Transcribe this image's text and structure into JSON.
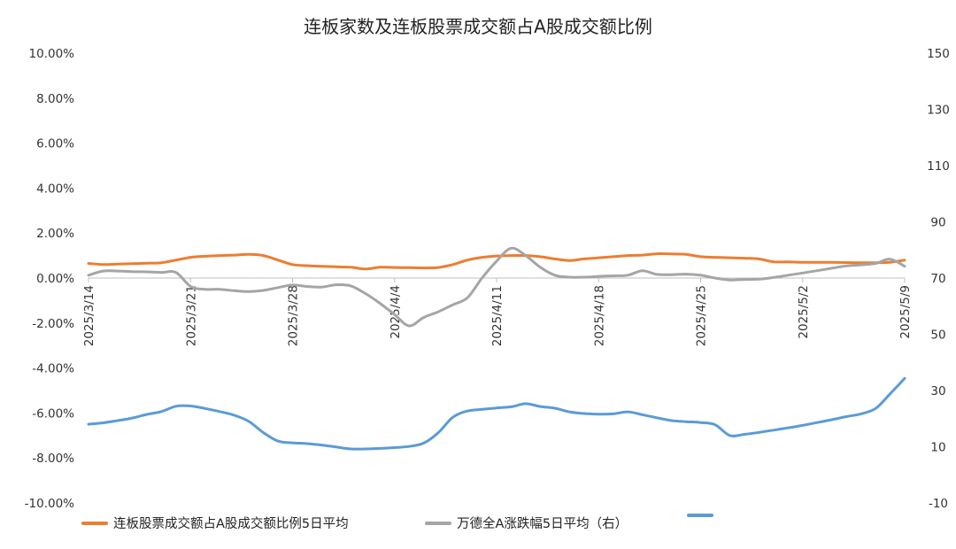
{
  "chart_data": {
    "type": "line",
    "title": "连板家数及连板股票成交额占A股成交额比例",
    "y_left": {
      "ylim": [
        -10,
        10
      ],
      "ticks": [
        "10.00%",
        "8.00%",
        "6.00%",
        "4.00%",
        "2.00%",
        "0.00%",
        "-2.00%",
        "-4.00%",
        "-6.00%",
        "-8.00%",
        "-10.00%"
      ]
    },
    "y_right": {
      "ylim": [
        -10,
        150
      ],
      "ticks": [
        "150",
        "130",
        "110",
        "90",
        "70",
        "50",
        "30",
        "10",
        "-10"
      ]
    },
    "x_ticks": [
      "2025/3/14",
      "2025/3/21",
      "2025/3/28",
      "2025/4/4",
      "2025/4/11",
      "2025/4/18",
      "2025/4/25",
      "2025/5/2",
      "2025/5/9"
    ],
    "x_tick_days": [
      0,
      7,
      14,
      21,
      28,
      35,
      42,
      49,
      56
    ],
    "series": [
      {
        "name": "连板股票成交额占A股成交额比例5日平均",
        "axis": "left",
        "color": "#ED7D31",
        "x": [
          0,
          1,
          2,
          3,
          4,
          5,
          6,
          7,
          8,
          9,
          10,
          11,
          12,
          13,
          14,
          15,
          16,
          17,
          18,
          19,
          20,
          21,
          22,
          23,
          24,
          25,
          26,
          27,
          28,
          29,
          30,
          31,
          32,
          33,
          34,
          35,
          36,
          37,
          38,
          39,
          40,
          41,
          42,
          43,
          44,
          45,
          46,
          47,
          48,
          49,
          50,
          51,
          52,
          53,
          54,
          55,
          56
        ],
        "values": [
          0.65,
          0.6,
          0.62,
          0.64,
          0.66,
          0.68,
          0.8,
          0.92,
          0.97,
          1.0,
          1.02,
          1.05,
          1.0,
          0.8,
          0.6,
          0.55,
          0.52,
          0.5,
          0.48,
          0.4,
          0.48,
          0.47,
          0.46,
          0.45,
          0.47,
          0.6,
          0.8,
          0.92,
          0.98,
          1.0,
          1.0,
          0.95,
          0.85,
          0.78,
          0.85,
          0.9,
          0.95,
          1.0,
          1.02,
          1.08,
          1.07,
          1.05,
          0.95,
          0.92,
          0.9,
          0.88,
          0.85,
          0.72,
          0.72,
          0.7,
          0.7,
          0.7,
          0.69,
          0.68,
          0.68,
          0.7,
          0.8
        ]
      },
      {
        "name": "万德全A涨跌幅5日平均（右）",
        "axis": "right",
        "color": "#A5A5A5",
        "x": [
          0,
          1,
          2,
          3,
          4,
          5,
          6,
          7,
          8,
          9,
          10,
          11,
          12,
          13,
          14,
          15,
          16,
          17,
          18,
          19,
          20,
          21,
          22,
          23,
          24,
          25,
          26,
          27,
          28,
          29,
          30,
          31,
          32,
          33,
          34,
          35,
          36,
          37,
          38,
          39,
          40,
          41,
          42,
          43,
          44,
          45,
          46,
          47,
          48,
          49,
          50,
          51,
          52,
          53,
          54,
          55,
          56
        ],
        "values": [
          71,
          72.5,
          72.5,
          72.3,
          72.2,
          72,
          72,
          67,
          66,
          66,
          65.5,
          65.2,
          65.6,
          66.6,
          67.5,
          67.0,
          66.8,
          67.6,
          67.2,
          64.5,
          61,
          57,
          53,
          56,
          58,
          60.5,
          63,
          70,
          76,
          80.6,
          78,
          73.8,
          71.0,
          70.3,
          70.3,
          70.6,
          70.8,
          71,
          72.6,
          71.3,
          71.2,
          71.4,
          71,
          70,
          69.3,
          69.5,
          69.6,
          70.2,
          71,
          71.8,
          72.6,
          73.5,
          74.3,
          74.7,
          75.2,
          76.7,
          74.2
        ]
      },
      {
        "name": "",
        "axis": "right",
        "color": "#5B9BD5",
        "x": [
          0,
          1,
          2,
          3,
          4,
          5,
          6,
          7,
          8,
          9,
          10,
          11,
          12,
          13,
          14,
          15,
          16,
          17,
          18,
          19,
          20,
          21,
          22,
          23,
          24,
          25,
          26,
          27,
          28,
          29,
          30,
          31,
          32,
          33,
          34,
          35,
          36,
          37,
          38,
          39,
          40,
          41,
          42,
          43,
          44,
          45,
          46,
          47,
          48,
          49,
          50,
          51,
          52,
          53,
          54,
          55,
          56
        ],
        "values": [
          18,
          18.5,
          19.3,
          20.2,
          21.5,
          22.5,
          24.4,
          24.5,
          23.6,
          22.5,
          21.2,
          19,
          15,
          12,
          11.4,
          11.1,
          10.6,
          9.9,
          9.2,
          9.2,
          9.4,
          9.7,
          10.1,
          11.3,
          15,
          20.5,
          22.7,
          23.3,
          23.8,
          24.2,
          25.3,
          24.3,
          23.7,
          22.4,
          21.8,
          21.6,
          21.7,
          22.4,
          21.4,
          20.3,
          19.3,
          18.9,
          18.6,
          17.8,
          14,
          14.4,
          15.1,
          15.9,
          16.7,
          17.6,
          18.6,
          19.6,
          20.7,
          21.7,
          23.6,
          28.8,
          34.3
        ]
      }
    ],
    "legend_position": "bottom",
    "grid": false
  }
}
